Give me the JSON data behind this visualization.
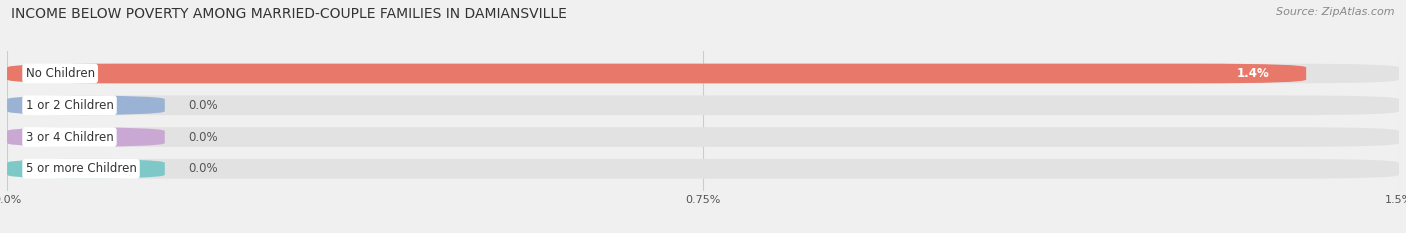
{
  "title": "INCOME BELOW POVERTY AMONG MARRIED-COUPLE FAMILIES IN DAMIANSVILLE",
  "source": "Source: ZipAtlas.com",
  "categories": [
    "No Children",
    "1 or 2 Children",
    "3 or 4 Children",
    "5 or more Children"
  ],
  "values": [
    1.4,
    0.0,
    0.0,
    0.0
  ],
  "bar_colors": [
    "#e8796a",
    "#9ab3d5",
    "#c9a8d4",
    "#7ec8c8"
  ],
  "xlim": [
    0,
    1.5
  ],
  "xticks": [
    0.0,
    0.75,
    1.5
  ],
  "xticklabels": [
    "0.0%",
    "0.75%",
    "1.5%"
  ],
  "title_fontsize": 10,
  "source_fontsize": 8,
  "bar_label_fontsize": 8.5,
  "category_fontsize": 8.5,
  "background_color": "#f0f0f0",
  "bar_background_color": "#e2e2e2",
  "bar_height": 0.62,
  "bar_gap": 0.38
}
